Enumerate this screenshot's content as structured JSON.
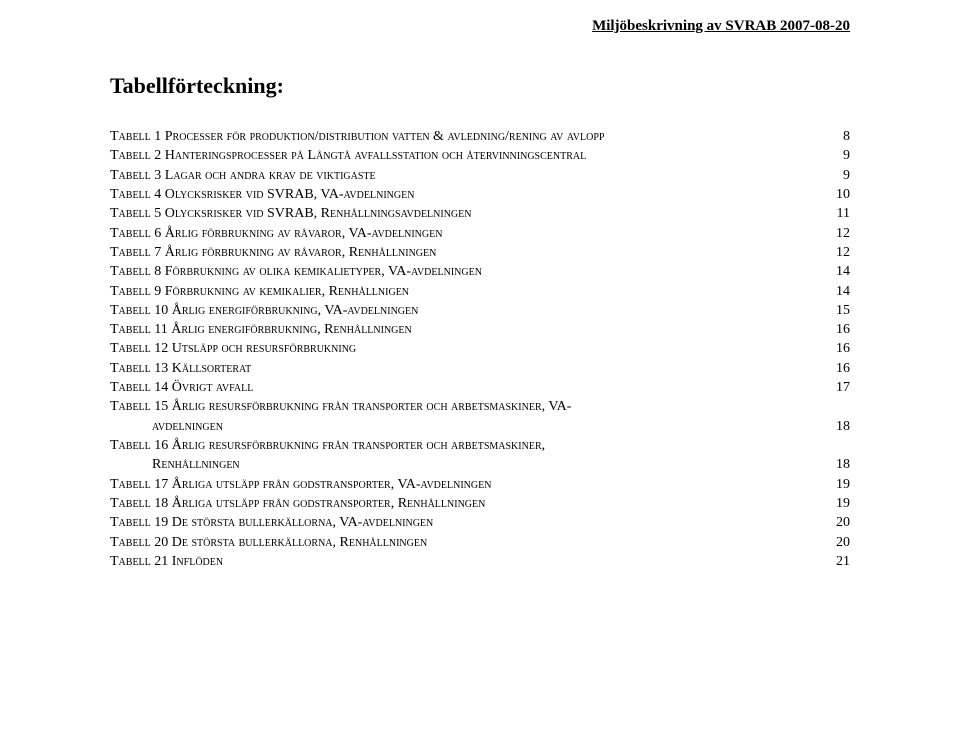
{
  "header": "Miljöbeskrivning av SVRAB 2007-08-20",
  "title": "Tabellförteckning:",
  "toc": [
    {
      "label": "Tabell 1 Processer för produktion/distribution vatten & avledning/rening av avlopp",
      "page": "8"
    },
    {
      "label": "Tabell 2 Hanteringsprocesser på Långtå avfallsstation och återvinningscentral",
      "page": "9"
    },
    {
      "label": "Tabell 3 Lagar och andra krav de viktigaste",
      "page": "9"
    },
    {
      "label": "Tabell 4 Olycksrisker vid SVRAB, VA-avdelningen",
      "page": "10"
    },
    {
      "label": "Tabell 5 Olycksrisker vid SVRAB, Renhållningsavdelningen",
      "page": "11"
    },
    {
      "label": "Tabell 6 Årlig förbrukning av råvaror, VA-avdelningen",
      "page": "12"
    },
    {
      "label": "Tabell 7 Årlig förbrukning av råvaror, Renhållningen",
      "page": "12"
    },
    {
      "label": "Tabell 8 Förbrukning av olika kemikalietyper, VA-avdelningen",
      "page": "14"
    },
    {
      "label": "Tabell 9 Förbrukning av kemikalier, Renhållnigen",
      "page": "14"
    },
    {
      "label": "Tabell 10 Årlig energiförbrukning, VA-avdelningen",
      "page": "15"
    },
    {
      "label": "Tabell 11 Årlig energiförbrukning, Renhållningen",
      "page": "16"
    },
    {
      "label": "Tabell 12 Utsläpp och resursförbrukning",
      "page": "16"
    },
    {
      "label": "Tabell 13 Källsorterat",
      "page": "16"
    },
    {
      "label": "Tabell 14 Övrigt avfall",
      "page": "17"
    },
    {
      "label": "Tabell 15 Årlig resursförbrukning från transporter och arbetsmaskiner, VA-",
      "cont": "avdelningen",
      "page": "18"
    },
    {
      "label": "Tabell 16 Årlig resursförbrukning från transporter och arbetsmaskiner,",
      "cont": "Renhållningen",
      "page": "18"
    },
    {
      "label": "Tabell 17 Årliga utsläpp från godstransporter, VA-avdelningen",
      "page": "19"
    },
    {
      "label": "Tabell 18 Årliga utsläpp från godstransporter, Renhållningen",
      "page": "19"
    },
    {
      "label": "Tabell 19 De största bullerkällorna, VA-avdelningen",
      "page": "20"
    },
    {
      "label": "Tabell 20 De största bullerkällorna, Renhållningen",
      "page": "20"
    },
    {
      "label": "Tabell 21 Inflöden",
      "page": "21"
    }
  ]
}
